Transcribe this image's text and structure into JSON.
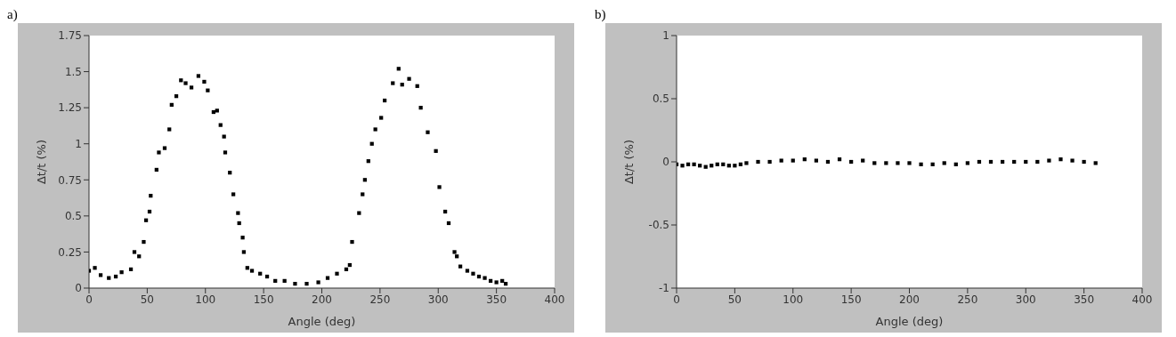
{
  "chart_data": [
    {
      "type": "scatter",
      "title": "a)",
      "xlabel": "Angle (deg)",
      "ylabel": "Δt/t  (%)",
      "marker": "square",
      "color": "#000000",
      "xlim": [
        0,
        400
      ],
      "xticks": [
        0,
        50,
        100,
        150,
        200,
        250,
        300,
        350,
        400
      ],
      "ylim": [
        0,
        1.75
      ],
      "yticks": [
        0,
        0.25,
        0.5,
        0.75,
        1,
        1.25,
        1.5,
        1.75
      ],
      "x": [
        0,
        5,
        10,
        17,
        23,
        28,
        36,
        39,
        43,
        47,
        49,
        52,
        53,
        58,
        60,
        65,
        69,
        71,
        75,
        79,
        83,
        88,
        94,
        99,
        102,
        107,
        110,
        113,
        116,
        117,
        121,
        124,
        128,
        129,
        132,
        133,
        136,
        140,
        147,
        153,
        160,
        168,
        177,
        187,
        197,
        205,
        213,
        221,
        224,
        226,
        232,
        235,
        237,
        240,
        243,
        246,
        251,
        254,
        261,
        266,
        269,
        275,
        282,
        285,
        291,
        298,
        301,
        306,
        309,
        314,
        316,
        319,
        325,
        330,
        335,
        340,
        345,
        350,
        355,
        358
      ],
      "values": [
        0.12,
        0.14,
        0.09,
        0.07,
        0.08,
        0.11,
        0.13,
        0.25,
        0.22,
        0.32,
        0.47,
        0.53,
        0.64,
        0.82,
        0.94,
        0.97,
        1.1,
        1.27,
        1.33,
        1.44,
        1.42,
        1.39,
        1.47,
        1.43,
        1.37,
        1.22,
        1.23,
        1.13,
        1.05,
        0.94,
        0.8,
        0.65,
        0.52,
        0.45,
        0.35,
        0.25,
        0.14,
        0.12,
        0.1,
        0.08,
        0.05,
        0.05,
        0.03,
        0.03,
        0.04,
        0.07,
        0.1,
        0.13,
        0.16,
        0.32,
        0.52,
        0.65,
        0.75,
        0.88,
        1.0,
        1.1,
        1.18,
        1.3,
        1.42,
        1.52,
        1.41,
        1.45,
        1.4,
        1.25,
        1.08,
        0.95,
        0.7,
        0.53,
        0.45,
        0.25,
        0.22,
        0.15,
        0.12,
        0.1,
        0.08,
        0.07,
        0.05,
        0.04,
        0.05,
        0.03
      ]
    },
    {
      "type": "scatter",
      "title": "b)",
      "xlabel": "Angle (deg)",
      "ylabel": "Δt/t  (%)",
      "marker": "square",
      "color": "#000000",
      "xlim": [
        0,
        400
      ],
      "xticks": [
        0,
        50,
        100,
        150,
        200,
        250,
        300,
        350,
        400
      ],
      "ylim": [
        -1,
        1
      ],
      "yticks": [
        -1,
        -0.5,
        0,
        0.5,
        1
      ],
      "x": [
        0,
        5,
        10,
        15,
        20,
        25,
        30,
        35,
        40,
        45,
        50,
        55,
        60,
        70,
        80,
        90,
        100,
        110,
        120,
        130,
        140,
        150,
        160,
        170,
        180,
        190,
        200,
        210,
        220,
        230,
        240,
        250,
        260,
        270,
        280,
        290,
        300,
        310,
        320,
        330,
        340,
        350,
        360
      ],
      "values": [
        -0.02,
        -0.03,
        -0.02,
        -0.02,
        -0.03,
        -0.04,
        -0.03,
        -0.02,
        -0.02,
        -0.03,
        -0.03,
        -0.02,
        -0.01,
        0,
        0,
        0.01,
        0.01,
        0.02,
        0.01,
        0,
        0.02,
        0,
        0.01,
        -0.01,
        -0.01,
        -0.01,
        -0.01,
        -0.02,
        -0.02,
        -0.01,
        -0.02,
        -0.01,
        0,
        0,
        0,
        0,
        0,
        0,
        0.01,
        0.02,
        0.01,
        0,
        -0.01
      ]
    }
  ]
}
